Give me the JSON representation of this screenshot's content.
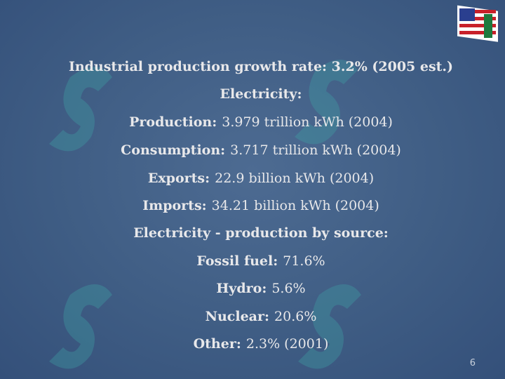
{
  "slide": {
    "lines": [
      {
        "label": "Industrial production growth rate: 3.2% (2005 est.)"
      },
      {
        "label": "Electricity:"
      },
      {
        "label": "Production:",
        "text": "3.979 trillion kWh (2004)"
      },
      {
        "label": "Consumption:",
        "text": "3.717 trillion kWh (2004)"
      },
      {
        "label": "Exports:",
        "text": "22.9 billion kWh (2004)"
      },
      {
        "label": "Imports:",
        "text": "34.21 billion kWh (2004)"
      },
      {
        "label": "Electricity - production by source:"
      },
      {
        "label": "Fossil fuel:",
        "text": "71.6%"
      },
      {
        "label": "Hydro:",
        "text": "5.6%"
      },
      {
        "label": "Nuclear:",
        "text": "20.6%"
      },
      {
        "label": "Other:",
        "text": "2.3% (2001)"
      }
    ],
    "page_number": "6"
  }
}
